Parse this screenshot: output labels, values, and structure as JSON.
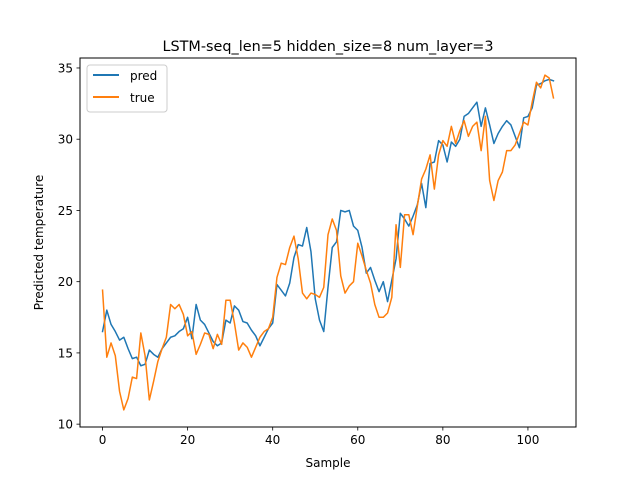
{
  "chart_data": {
    "type": "line",
    "title": "LSTM-seq_len=5 hidden_size=8 num_layer=3",
    "xlabel": "Sample",
    "ylabel": "Predicted temperature",
    "xlim": [
      -5.3,
      111.3
    ],
    "ylim": [
      9.8,
      35.7
    ],
    "xticks": [
      0,
      20,
      40,
      60,
      80,
      100
    ],
    "yticks": [
      10,
      15,
      20,
      25,
      30,
      35
    ],
    "grid": false,
    "legend": "top-left",
    "series": [
      {
        "name": "pred",
        "color": "#1f77b4",
        "values": [
          16.5,
          18.0,
          17.0,
          16.5,
          15.9,
          16.1,
          15.3,
          14.6,
          14.7,
          14.1,
          14.2,
          15.2,
          14.9,
          14.7,
          15.3,
          15.7,
          16.1,
          16.2,
          16.5,
          16.7,
          17.5,
          16.0,
          18.4,
          17.3,
          17.0,
          16.4,
          15.8,
          15.5,
          15.7,
          17.3,
          17.1,
          18.3,
          18.0,
          17.2,
          17.1,
          16.6,
          16.2,
          15.5,
          16.1,
          16.7,
          17.1,
          19.8,
          19.4,
          19.0,
          19.9,
          21.7,
          22.6,
          22.5,
          23.8,
          22.1,
          18.8,
          17.3,
          16.5,
          19.6,
          22.4,
          22.8,
          25.0,
          24.9,
          25.0,
          23.9,
          23.6,
          22.4,
          20.6,
          21.0,
          20.1,
          19.3,
          20.0,
          18.6,
          20.1,
          21.6,
          24.8,
          24.4,
          23.9,
          24.6,
          25.4,
          26.9,
          25.2,
          28.3,
          28.4,
          29.9,
          29.6,
          28.4,
          29.8,
          29.5,
          30.0,
          31.6,
          31.8,
          32.2,
          32.6,
          30.9,
          32.2,
          31.0,
          29.7,
          30.4,
          30.9,
          31.3,
          31.0,
          30.2,
          29.4,
          31.5,
          31.6,
          32.2,
          33.8,
          33.9,
          34.1,
          34.2,
          34.1
        ],
        "x_start": 0
      },
      {
        "name": "true",
        "color": "#ff7f0e",
        "values": [
          19.4,
          14.7,
          15.7,
          14.8,
          12.3,
          11.0,
          11.8,
          13.3,
          13.2,
          16.4,
          14.8,
          11.7,
          13.0,
          14.4,
          15.3,
          16.1,
          18.4,
          18.1,
          18.4,
          17.7,
          16.2,
          16.5,
          14.9,
          15.6,
          16.4,
          16.3,
          15.3,
          16.3,
          15.6,
          18.7,
          18.7,
          17.1,
          15.2,
          15.7,
          15.4,
          14.7,
          15.4,
          16.1,
          16.5,
          16.7,
          17.5,
          20.3,
          21.3,
          21.2,
          22.4,
          23.2,
          21.6,
          19.2,
          18.8,
          19.2,
          19.1,
          18.9,
          19.6,
          23.3,
          24.4,
          23.6,
          20.4,
          19.2,
          19.7,
          20.0,
          22.7,
          21.8,
          20.8,
          19.9,
          18.4,
          17.5,
          17.5,
          17.8,
          18.9,
          24.0,
          21.0,
          24.7,
          24.7,
          23.3,
          25.3,
          27.2,
          27.9,
          28.9,
          26.5,
          28.9,
          29.9,
          29.5,
          30.9,
          29.7,
          30.6,
          31.3,
          30.2,
          30.9,
          31.2,
          29.2,
          31.6,
          27.1,
          25.7,
          27.1,
          27.7,
          29.2,
          29.2,
          29.6,
          30.4,
          31.2,
          31.0,
          32.6,
          34.0,
          33.6,
          34.5,
          34.3,
          32.9
        ],
        "x_start": 0
      }
    ]
  }
}
